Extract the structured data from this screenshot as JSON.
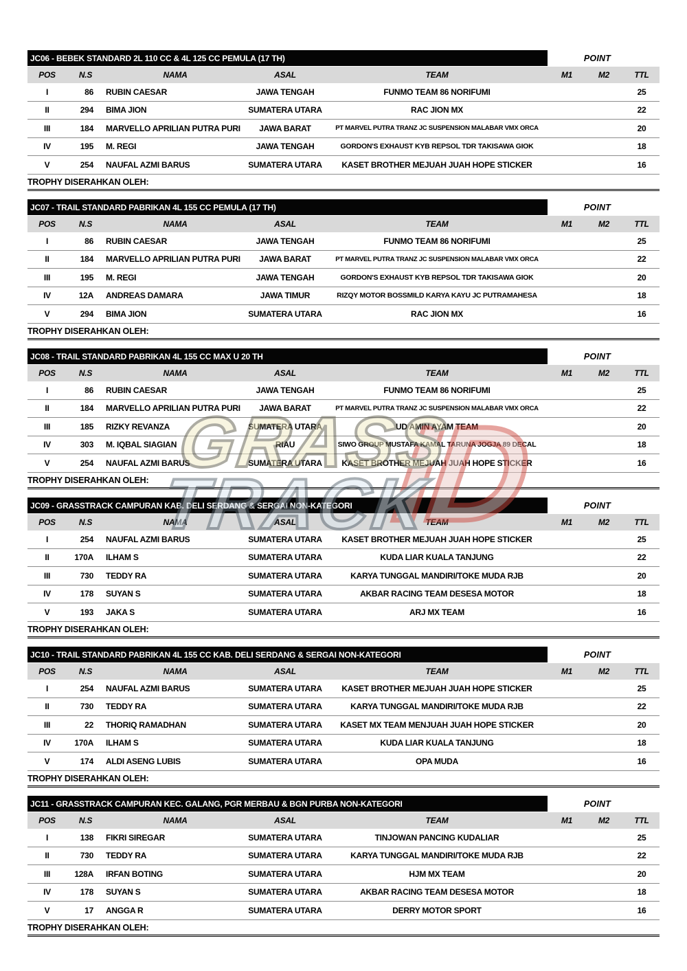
{
  "labels": {
    "point": "POINT",
    "trophy": "TROPHY DISERAHKAN OLEH:"
  },
  "columns": {
    "pos": "POS",
    "ns": "N.S",
    "nama": "NAMA",
    "asal": "ASAL",
    "team": "TEAM",
    "m1": "M1",
    "m2": "M2",
    "ttl": "TTL"
  },
  "colors": {
    "title_bar_bg": "#050505",
    "title_bar_text": "#ffffff",
    "column_header_bg": "#d9d9d9",
    "body_text": "#000000",
    "watermark_yellow": "#f2ecc4",
    "watermark_blue": "#dde9f2",
    "watermark_red": "#cf4a40"
  },
  "watermark": {
    "word1": "GRASS",
    "word2": "TRACK",
    "word3": "ID"
  },
  "sections": [
    {
      "title": "JC06 - BEBEK STANDARD 2L 110 CC & 4L 125 CC PEMULA (17 TH)",
      "rows": [
        {
          "pos": "I",
          "ns": "86",
          "nama": "RUBIN CAESAR",
          "asal": "JAWA TENGAH",
          "team": "FUNMO TEAM 86 NORIFUMI",
          "m1": "",
          "m2": "",
          "ttl": "25"
        },
        {
          "pos": "II",
          "ns": "294",
          "nama": "BIMA JION",
          "asal": "SUMATERA UTARA",
          "team": "RAC JION MX",
          "m1": "",
          "m2": "",
          "ttl": "22"
        },
        {
          "pos": "III",
          "ns": "184",
          "nama": "MARVELLO APRILIAN PUTRA PURI",
          "asal": "JAWA BARAT",
          "team": "PT MARVEL PUTRA TRANZ JC SUSPENSION MALABAR VMX ORCA",
          "m1": "",
          "m2": "",
          "ttl": "20"
        },
        {
          "pos": "IV",
          "ns": "195",
          "nama": "M. REGI",
          "asal": "JAWA TENGAH",
          "team": "GORDON'S EXHAUST KYB REPSOL TDR TAKISAWA GIOK",
          "m1": "",
          "m2": "",
          "ttl": "18"
        },
        {
          "pos": "V",
          "ns": "254",
          "nama": "NAUFAL AZMI BARUS",
          "asal": "SUMATERA UTARA",
          "team": "KASET BROTHER MEJUAH JUAH HOPE STICKER",
          "m1": "",
          "m2": "",
          "ttl": "16"
        }
      ]
    },
    {
      "title": "JC07 - TRAIL STANDARD PABRIKAN 4L 155 CC PEMULA (17 TH)",
      "rows": [
        {
          "pos": "I",
          "ns": "86",
          "nama": "RUBIN CAESAR",
          "asal": "JAWA TENGAH",
          "team": "FUNMO TEAM 86 NORIFUMI",
          "m1": "",
          "m2": "",
          "ttl": "25"
        },
        {
          "pos": "II",
          "ns": "184",
          "nama": "MARVELLO APRILIAN PUTRA PURI",
          "asal": "JAWA BARAT",
          "team": "PT MARVEL PUTRA TRANZ JC SUSPENSION MALABAR VMX ORCA",
          "m1": "",
          "m2": "",
          "ttl": "22"
        },
        {
          "pos": "III",
          "ns": "195",
          "nama": "M. REGI",
          "asal": "JAWA TENGAH",
          "team": "GORDON'S EXHAUST KYB REPSOL TDR TAKISAWA GIOK",
          "m1": "",
          "m2": "",
          "ttl": "20"
        },
        {
          "pos": "IV",
          "ns": "12A",
          "nama": "ANDREAS DAMARA",
          "asal": "JAWA TIMUR",
          "team": "RIZQY MOTOR BOSSMILD KARYA KAYU JC PUTRAMAHESA",
          "m1": "",
          "m2": "",
          "ttl": "18"
        },
        {
          "pos": "V",
          "ns": "294",
          "nama": "BIMA JION",
          "asal": "SUMATERA UTARA",
          "team": "RAC JION MX",
          "m1": "",
          "m2": "",
          "ttl": "16"
        }
      ]
    },
    {
      "title": "JC08 - TRAIL STANDARD PABRIKAN 4L 155 CC MAX U 20 TH",
      "rows": [
        {
          "pos": "I",
          "ns": "86",
          "nama": "RUBIN CAESAR",
          "asal": "JAWA TENGAH",
          "team": "FUNMO TEAM 86 NORIFUMI",
          "m1": "",
          "m2": "",
          "ttl": "25"
        },
        {
          "pos": "II",
          "ns": "184",
          "nama": "MARVELLO APRILIAN PUTRA PURI",
          "asal": "JAWA BARAT",
          "team": "PT MARVEL PUTRA TRANZ JC SUSPENSION MALABAR VMX ORCA",
          "m1": "",
          "m2": "",
          "ttl": "22"
        },
        {
          "pos": "III",
          "ns": "185",
          "nama": "RIZKY REVANZA",
          "asal": "SUMATERA UTARA",
          "team": "UD AMIN AYAM TEAM",
          "m1": "",
          "m2": "",
          "ttl": "20"
        },
        {
          "pos": "IV",
          "ns": "303",
          "nama": "M. IQBAL SIAGIAN",
          "asal": "RIAU",
          "team": "SIWO GROUP MUSTAFA KAMAL TARUNA JOGJA 89 DECAL",
          "m1": "",
          "m2": "",
          "ttl": "18"
        },
        {
          "pos": "V",
          "ns": "254",
          "nama": "NAUFAL AZMI BARUS",
          "asal": "SUMATERA UTARA",
          "team": "KASET BROTHER MEJUAH JUAH HOPE STICKER",
          "m1": "",
          "m2": "",
          "ttl": "16"
        }
      ]
    },
    {
      "title": "JC09 - GRASSTRACK CAMPURAN KAB. DELI SERDANG & SERGAI NON-KATEGORI",
      "rows": [
        {
          "pos": "I",
          "ns": "254",
          "nama": "NAUFAL AZMI BARUS",
          "asal": "SUMATERA UTARA",
          "team": "KASET BROTHER MEJUAH JUAH HOPE STICKER",
          "m1": "",
          "m2": "",
          "ttl": "25"
        },
        {
          "pos": "II",
          "ns": "170A",
          "nama": "ILHAM S",
          "asal": "SUMATERA UTARA",
          "team": "KUDA LIAR KUALA TANJUNG",
          "m1": "",
          "m2": "",
          "ttl": "22"
        },
        {
          "pos": "III",
          "ns": "730",
          "nama": "TEDDY RA",
          "asal": "SUMATERA UTARA",
          "team": "KARYA TUNGGAL MANDIRI/TOKE MUDA RJB",
          "m1": "",
          "m2": "",
          "ttl": "20"
        },
        {
          "pos": "IV",
          "ns": "178",
          "nama": "SUYAN S",
          "asal": "SUMATERA UTARA",
          "team": "AKBAR RACING TEAM DESESA MOTOR",
          "m1": "",
          "m2": "",
          "ttl": "18"
        },
        {
          "pos": "V",
          "ns": "193",
          "nama": "JAKA S",
          "asal": "SUMATERA UTARA",
          "team": "ARJ MX TEAM",
          "m1": "",
          "m2": "",
          "ttl": "16"
        }
      ]
    },
    {
      "title": "JC10 - TRAIL STANDARD PABRIKAN 4L 155 CC KAB. DELI SERDANG & SERGAI NON-KATEGORI",
      "rows": [
        {
          "pos": "I",
          "ns": "254",
          "nama": "NAUFAL AZMI BARUS",
          "asal": "SUMATERA UTARA",
          "team": "KASET BROTHER MEJUAH JUAH HOPE STICKER",
          "m1": "",
          "m2": "",
          "ttl": "25"
        },
        {
          "pos": "II",
          "ns": "730",
          "nama": "TEDDY RA",
          "asal": "SUMATERA UTARA",
          "team": "KARYA TUNGGAL MANDIRI/TOKE MUDA RJB",
          "m1": "",
          "m2": "",
          "ttl": "22"
        },
        {
          "pos": "III",
          "ns": "22",
          "nama": "THORIQ RAMADHAN",
          "asal": "SUMATERA UTARA",
          "team": "KASET MX TEAM MENJUAH JUAH HOPE STICKER",
          "m1": "",
          "m2": "",
          "ttl": "20"
        },
        {
          "pos": "IV",
          "ns": "170A",
          "nama": "ILHAM S",
          "asal": "SUMATERA UTARA",
          "team": "KUDA LIAR KUALA TANJUNG",
          "m1": "",
          "m2": "",
          "ttl": "18"
        },
        {
          "pos": "V",
          "ns": "174",
          "nama": "ALDI ASENG LUBIS",
          "asal": "SUMATERA UTARA",
          "team": "OPA MUDA",
          "m1": "",
          "m2": "",
          "ttl": "16"
        }
      ]
    },
    {
      "title": "JC11 - GRASSTRACK CAMPURAN KEC. GALANG, PGR MERBAU & BGN PURBA NON-KATEGORI",
      "rows": [
        {
          "pos": "I",
          "ns": "138",
          "nama": "FIKRI SIREGAR",
          "asal": "SUMATERA UTARA",
          "team": "TINJOWAN PANCING KUDALIAR",
          "m1": "",
          "m2": "",
          "ttl": "25"
        },
        {
          "pos": "II",
          "ns": "730",
          "nama": "TEDDY RA",
          "asal": "SUMATERA UTARA",
          "team": "KARYA TUNGGAL MANDIRI/TOKE MUDA RJB",
          "m1": "",
          "m2": "",
          "ttl": "22"
        },
        {
          "pos": "III",
          "ns": "128A",
          "nama": "IRFAN BOTING",
          "asal": "SUMATERA UTARA",
          "team": "HJM MX TEAM",
          "m1": "",
          "m2": "",
          "ttl": "20"
        },
        {
          "pos": "IV",
          "ns": "178",
          "nama": "SUYAN S",
          "asal": "SUMATERA UTARA",
          "team": "AKBAR RACING TEAM DESESA MOTOR",
          "m1": "",
          "m2": "",
          "ttl": "18"
        },
        {
          "pos": "V",
          "ns": "17",
          "nama": "ANGGA R",
          "asal": "SUMATERA UTARA",
          "team": "DERRY MOTOR SPORT",
          "m1": "",
          "m2": "",
          "ttl": "16"
        }
      ]
    }
  ]
}
